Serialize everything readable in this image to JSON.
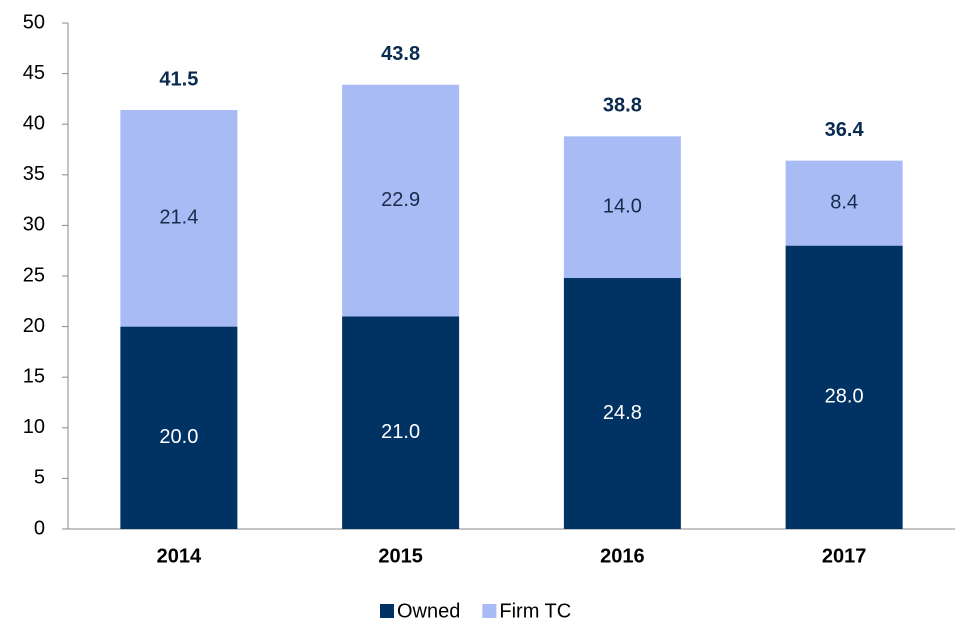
{
  "chart_data": {
    "type": "stacked_bar",
    "categories": [
      "2014",
      "2015",
      "2016",
      "2017"
    ],
    "series": [
      {
        "name": "Owned",
        "color": "#003264",
        "values": [
          20.0,
          21.0,
          24.8,
          28.0
        ],
        "value_labels": [
          "20.0",
          "21.0",
          "24.8",
          "28.0"
        ]
      },
      {
        "name": "Firm TC",
        "color": "#a8bbf4",
        "values": [
          21.4,
          22.9,
          14.0,
          8.4
        ],
        "value_labels": [
          "21.4",
          "22.9",
          "14.0",
          "8.4"
        ]
      }
    ],
    "totals": [
      41.5,
      43.8,
      38.8,
      36.4
    ],
    "ylim": [
      0,
      50
    ],
    "yticks": [
      0,
      5,
      10,
      15,
      20,
      25,
      30,
      35,
      40,
      45,
      50
    ],
    "grid": false,
    "legend": "bottom"
  }
}
